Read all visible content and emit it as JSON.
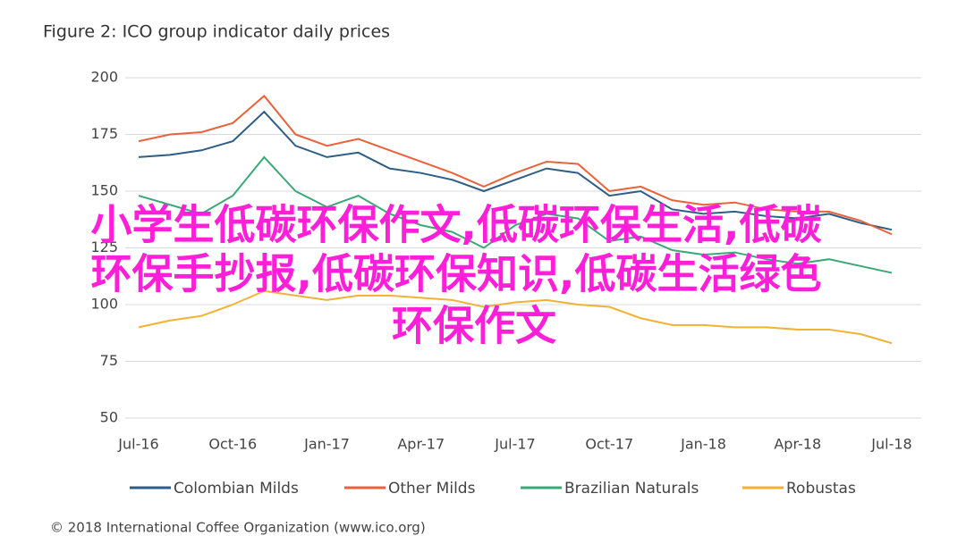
{
  "chart_data": {
    "type": "line",
    "title": "Figure 2: ICO group indicator daily prices",
    "x": [
      "Jul-16",
      "Aug-16",
      "Sep-16",
      "Oct-16",
      "Nov-16",
      "Dec-16",
      "Jan-17",
      "Feb-17",
      "Mar-17",
      "Apr-17",
      "May-17",
      "Jun-17",
      "Jul-17",
      "Aug-17",
      "Sep-17",
      "Oct-17",
      "Nov-17",
      "Dec-17",
      "Jan-18",
      "Feb-18",
      "Mar-18",
      "Apr-18",
      "May-18",
      "Jun-18",
      "Jul-18"
    ],
    "xticks": [
      "Jul-16",
      "Oct-16",
      "Jan-17",
      "Apr-17",
      "Jul-17",
      "Oct-17",
      "Jan-18",
      "Apr-18",
      "Jul-18"
    ],
    "series": [
      {
        "name": "Colombian Milds",
        "color": "#2e5d87",
        "values": [
          165,
          166,
          168,
          172,
          185,
          170,
          165,
          167,
          160,
          158,
          155,
          150,
          155,
          160,
          158,
          148,
          150,
          142,
          140,
          141,
          139,
          138,
          140,
          136,
          133
        ]
      },
      {
        "name": "Other Milds",
        "color": "#e8623a",
        "values": [
          172,
          175,
          176,
          180,
          192,
          175,
          170,
          173,
          168,
          163,
          158,
          152,
          158,
          163,
          162,
          150,
          152,
          146,
          144,
          145,
          142,
          141,
          141,
          137,
          131
        ]
      },
      {
        "name": "Brazilian Naturals",
        "color": "#3aa876",
        "values": [
          148,
          144,
          140,
          148,
          165,
          150,
          143,
          148,
          140,
          135,
          132,
          125,
          135,
          140,
          138,
          128,
          130,
          124,
          122,
          123,
          120,
          118,
          120,
          117,
          114
        ]
      },
      {
        "name": "Robustas",
        "color": "#f2b134",
        "values": [
          90,
          93,
          95,
          100,
          106,
          104,
          102,
          104,
          104,
          103,
          102,
          99,
          101,
          102,
          100,
          99,
          94,
          91,
          91,
          90,
          90,
          89,
          89,
          87,
          83
        ]
      }
    ],
    "ylim": [
      50,
      200
    ],
    "yticks": [
      50,
      75,
      100,
      125,
      150,
      175,
      200
    ],
    "grid": true,
    "legend": "bottom",
    "footer": "© 2018 International Coffee Organization (www.ico.org)",
    "overlay": [
      "小学生低碳环保作文,低碳环保生活,低碳",
      "环保手抄报,低碳环保知识,低碳生活绿色",
      "环保作文"
    ]
  }
}
